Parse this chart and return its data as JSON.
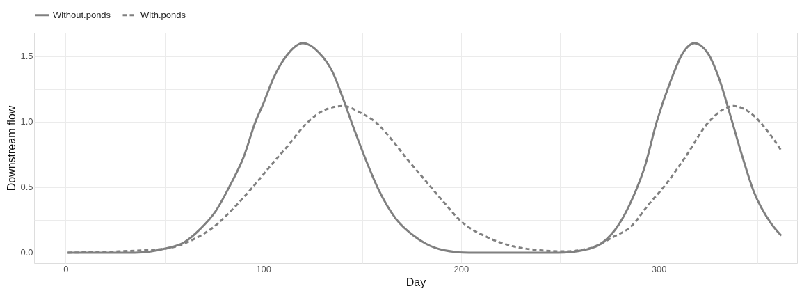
{
  "chart_data": {
    "type": "line",
    "xlabel": "Day",
    "ylabel": "Downstream flow",
    "xlim": [
      -16,
      370
    ],
    "ylim": [
      -0.08,
      1.68
    ],
    "xticks": [
      0,
      {
        "value": 50,
        "label": null
      },
      100,
      {
        "value": 150,
        "label": null
      },
      200,
      {
        "value": 250,
        "label": null
      },
      300,
      {
        "value": 350,
        "label": null
      }
    ],
    "yticks": [
      {
        "value": 0,
        "label": "0.0"
      },
      {
        "value": 0.25,
        "label": null
      },
      0.5,
      {
        "value": 0.75,
        "label": null
      },
      {
        "value": 1,
        "label": "1.0"
      },
      {
        "value": 1.25,
        "label": null
      },
      1.5
    ],
    "grid": true,
    "legend": "top",
    "series": [
      {
        "name": "Without.ponds",
        "color": "#808080",
        "line_style": "solid",
        "x": [
          1,
          35,
          50,
          60,
          68,
          76,
          83,
          90,
          96,
          100,
          105,
          112,
          120,
          128,
          135,
          140,
          145,
          150,
          158,
          167,
          176,
          182,
          191,
          204,
          249,
          262,
          271,
          280,
          286,
          293,
          299,
          306,
          312,
          318,
          325,
          331,
          336,
          342,
          348,
          357,
          362
        ],
        "values": [
          0,
          0,
          0.03,
          0.08,
          0.18,
          0.32,
          0.51,
          0.73,
          1.0,
          1.14,
          1.33,
          1.51,
          1.6,
          1.53,
          1.38,
          1.19,
          0.98,
          0.78,
          0.49,
          0.26,
          0.13,
          0.07,
          0.02,
          0,
          0,
          0.02,
          0.07,
          0.22,
          0.39,
          0.66,
          1.0,
          1.31,
          1.52,
          1.6,
          1.52,
          1.31,
          1.06,
          0.75,
          0.47,
          0.22,
          0.13
        ]
      },
      {
        "name": "With.ponds",
        "color": "#808080",
        "line_style": "dashed",
        "x": [
          1,
          27,
          50,
          63,
          76,
          83,
          94,
          104,
          112,
          122,
          131,
          140,
          149,
          158,
          164,
          173,
          182,
          191,
          200,
          213,
          226,
          239,
          252,
          264,
          277,
          286,
          295,
          303,
          313,
          326,
          338,
          347,
          356,
          362
        ],
        "values": [
          0,
          0.01,
          0.03,
          0.09,
          0.21,
          0.31,
          0.49,
          0.67,
          0.81,
          0.99,
          1.09,
          1.12,
          1.07,
          0.98,
          0.88,
          0.71,
          0.55,
          0.39,
          0.24,
          0.12,
          0.05,
          0.02,
          0.01,
          0.03,
          0.12,
          0.2,
          0.37,
          0.51,
          0.72,
          1.01,
          1.12,
          1.06,
          0.91,
          0.78
        ]
      }
    ]
  }
}
